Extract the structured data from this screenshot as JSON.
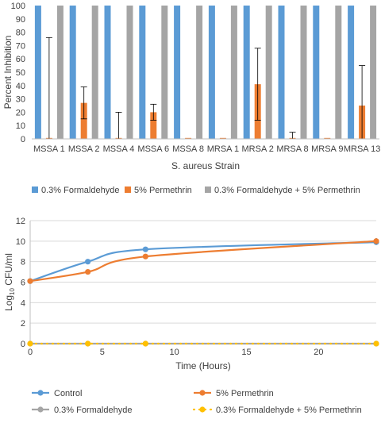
{
  "chart_data": [
    {
      "type": "bar",
      "categories": [
        "MSSA 1",
        "MSSA 2",
        "MSSA 4",
        "MSSA 6",
        "MSSA 8",
        "MRSA 1",
        "MRSA 2",
        "MRSA 8",
        "MRSA 9",
        "MRSA 13"
      ],
      "series": [
        {
          "name": "0.3% Formaldehyde",
          "color": "#5b9bd5",
          "values": [
            100,
            100,
            100,
            100,
            100,
            100,
            100,
            100,
            100,
            100
          ],
          "error": [
            0,
            0,
            0,
            0,
            0,
            0,
            0,
            0,
            0,
            0
          ]
        },
        {
          "name": "5% Permethrin",
          "color": "#ed7d31",
          "values": [
            0,
            27,
            0,
            20,
            0,
            0,
            41,
            0,
            0,
            25
          ],
          "error": [
            76,
            12,
            20,
            6,
            0,
            0,
            27,
            5,
            0,
            30
          ]
        },
        {
          "name": "0.3% Formaldehyde + 5% Permethrin",
          "color": "#a5a5a5",
          "values": [
            100,
            100,
            100,
            100,
            100,
            100,
            100,
            100,
            100,
            100
          ],
          "error": [
            0,
            0,
            0,
            0,
            0,
            0,
            0,
            0,
            0,
            0
          ]
        }
      ],
      "xlabel": "S. aureus Strain",
      "ylabel": "Percent Inhibition",
      "ylim": [
        0,
        100
      ],
      "yticks": [
        "0",
        "10",
        "20",
        "30",
        "40",
        "50",
        "60",
        "70",
        "80",
        "90",
        "100"
      ],
      "grid": false,
      "legend": "bottom"
    },
    {
      "type": "line",
      "series": [
        {
          "name": "Control",
          "color": "#5b9bd5",
          "dash": "solid",
          "points": [
            [
              0,
              6.1
            ],
            [
              4,
              8.0
            ],
            [
              8,
              9.2
            ],
            [
              24,
              9.9
            ]
          ],
          "error": [
            0,
            0,
            0,
            0.1
          ]
        },
        {
          "name": "5% Permethrin",
          "color": "#ed7d31",
          "dash": "solid",
          "points": [
            [
              0,
              6.1
            ],
            [
              4,
              7.0
            ],
            [
              8,
              8.5
            ],
            [
              24,
              10.0
            ]
          ],
          "error": [
            0,
            0,
            0,
            0.3
          ]
        },
        {
          "name": "0.3% Formaldehyde",
          "color": "#a5a5a5",
          "dash": "solid",
          "points": [
            [
              0,
              0
            ],
            [
              4,
              0
            ],
            [
              8,
              0
            ],
            [
              24,
              0
            ]
          ],
          "error": [
            0,
            0,
            0,
            0
          ]
        },
        {
          "name": "0.3% Formaldehyde + 5% Permethrin",
          "color": "#ffc000",
          "dash": "dotted",
          "points": [
            [
              0,
              0
            ],
            [
              4,
              0
            ],
            [
              8,
              0
            ],
            [
              24,
              0
            ]
          ],
          "error": [
            0,
            0,
            0,
            0
          ]
        }
      ],
      "xlabel": "Time (Hours)",
      "ylabel_main": "Log",
      "ylabel_sub": "10",
      "ylabel_tail": " CFU/ml",
      "xlim": [
        0,
        24
      ],
      "ylim": [
        0,
        12
      ],
      "xticks": [
        "0",
        "5",
        "10",
        "15",
        "20"
      ],
      "yticks": [
        "0",
        "2",
        "4",
        "6",
        "8",
        "10",
        "12"
      ],
      "grid": true,
      "legend": "bottom"
    }
  ]
}
